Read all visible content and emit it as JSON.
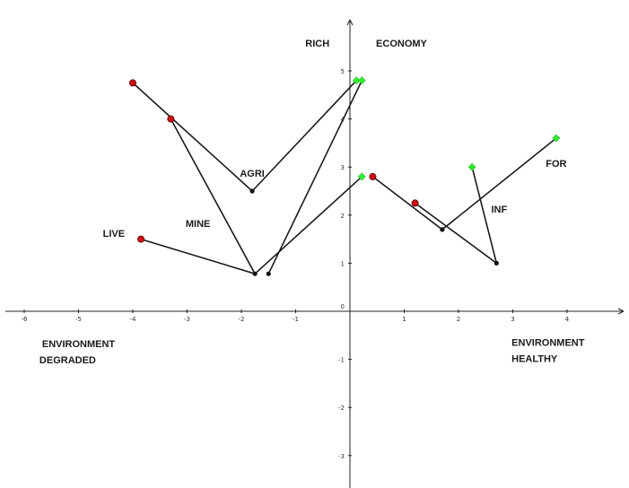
{
  "chart_data": {
    "type": "scatter",
    "title": "",
    "xlabel": "",
    "ylabel": "",
    "xlim": [
      -6.3,
      5.0
    ],
    "ylim": [
      -3.5,
      6.0
    ],
    "grid": false,
    "x_ticks": [
      -6,
      -5,
      -4,
      -3,
      -2,
      -1,
      1,
      2,
      3,
      4
    ],
    "y_ticks": [
      -3,
      -2,
      -1,
      1,
      2,
      3,
      4,
      5
    ],
    "origin_label": "0",
    "colors": {
      "red_point": "#cc1111",
      "green_point": "#33ee33",
      "black_point": "#111111",
      "line": "#1a1a1a"
    },
    "segments": [
      {
        "from": [
          -4.0,
          4.75
        ],
        "to": [
          -1.8,
          2.5
        ]
      },
      {
        "from": [
          -1.8,
          2.5
        ],
        "to": [
          0.12,
          4.8
        ]
      },
      {
        "from": [
          -3.3,
          4.0
        ],
        "to": [
          -1.75,
          0.78
        ]
      },
      {
        "from": [
          -1.5,
          0.78
        ],
        "to": [
          0.22,
          4.8
        ]
      },
      {
        "from": [
          -3.85,
          1.5
        ],
        "to": [
          -1.75,
          0.78
        ]
      },
      {
        "from": [
          -1.75,
          0.78
        ],
        "to": [
          0.22,
          2.8
        ]
      },
      {
        "from": [
          0.42,
          2.8
        ],
        "to": [
          1.7,
          1.7
        ]
      },
      {
        "from": [
          1.7,
          1.7
        ],
        "to": [
          3.8,
          3.6
        ]
      },
      {
        "from": [
          1.2,
          2.25
        ],
        "to": [
          2.7,
          1.0
        ]
      },
      {
        "from": [
          2.25,
          3.0
        ],
        "to": [
          2.7,
          1.0
        ]
      }
    ],
    "points": [
      {
        "x": -4.0,
        "y": 4.75,
        "color": "red"
      },
      {
        "x": -3.3,
        "y": 4.0,
        "color": "red"
      },
      {
        "x": -3.85,
        "y": 1.5,
        "color": "red"
      },
      {
        "x": 0.42,
        "y": 2.8,
        "color": "red"
      },
      {
        "x": 1.2,
        "y": 2.25,
        "color": "red"
      },
      {
        "x": 0.12,
        "y": 4.8,
        "color": "green"
      },
      {
        "x": 0.22,
        "y": 4.8,
        "color": "green"
      },
      {
        "x": 0.22,
        "y": 2.8,
        "color": "green"
      },
      {
        "x": 2.25,
        "y": 3.0,
        "color": "green"
      },
      {
        "x": 3.8,
        "y": 3.6,
        "color": "green"
      },
      {
        "x": -1.8,
        "y": 2.5,
        "color": "black"
      },
      {
        "x": -1.75,
        "y": 0.78,
        "color": "black"
      },
      {
        "x": -1.5,
        "y": 0.78,
        "color": "black"
      },
      {
        "x": 1.7,
        "y": 1.7,
        "color": "black"
      },
      {
        "x": 2.7,
        "y": 1.0,
        "color": "black"
      }
    ],
    "annotations": [
      {
        "text": "RICH",
        "x": -0.6,
        "y": 5.5
      },
      {
        "text": "ECONOMY",
        "x": 0.95,
        "y": 5.5
      },
      {
        "text": "AGRI",
        "x": -1.8,
        "y": 2.8
      },
      {
        "text": "MINE",
        "x": -2.8,
        "y": 1.75
      },
      {
        "text": "LIVE",
        "x": -4.35,
        "y": 1.55
      },
      {
        "text": "INF",
        "x": 2.75,
        "y": 2.05
      },
      {
        "text": "FOR",
        "x": 3.8,
        "y": 3.0
      },
      {
        "text": "ENVIRONMENT",
        "x": -5.0,
        "y": -0.75
      },
      {
        "text": "DEGRADED",
        "x": -5.2,
        "y": -1.08
      },
      {
        "text": "ENVIRONMENT",
        "x": 3.65,
        "y": -0.72
      },
      {
        "text": "HEALTHY",
        "x": 3.4,
        "y": -1.05
      }
    ]
  }
}
